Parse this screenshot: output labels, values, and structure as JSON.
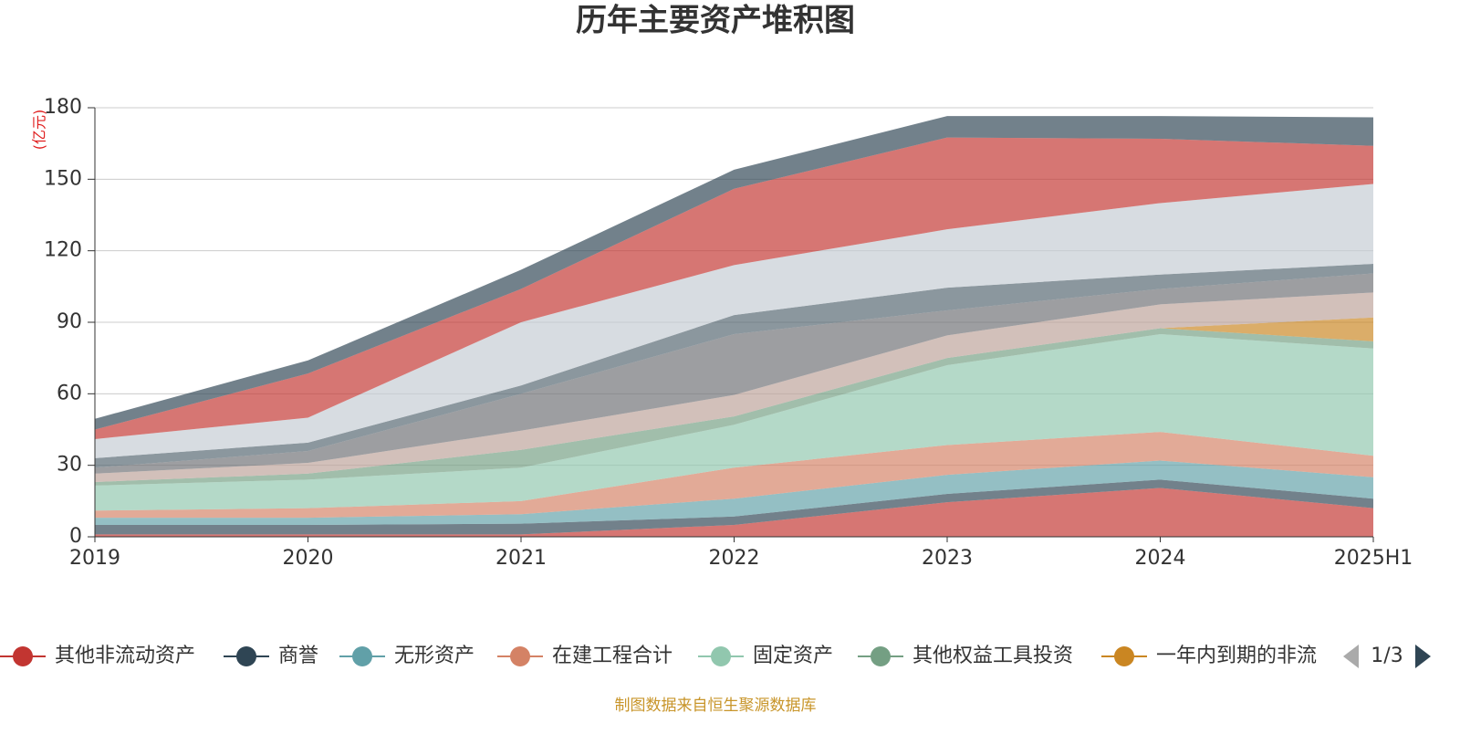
{
  "chart_data": {
    "type": "stacked_area",
    "title": "历年主要资产堆积图",
    "y_unit": "(亿元)",
    "footer": "制图数据来自恒生聚源数据库",
    "legend_pager": "1/3",
    "categories": [
      "2019",
      "2020",
      "2021",
      "2022",
      "2023",
      "2024",
      "2025H1"
    ],
    "ylim": [
      0,
      180
    ],
    "yticks": [
      0,
      30,
      60,
      90,
      120,
      150,
      180
    ],
    "grid": true,
    "series": [
      {
        "name": "其他非流动资产",
        "color": "#c23531",
        "values": [
          1,
          1,
          1,
          5,
          14.5,
          20.5,
          12
        ]
      },
      {
        "name": "商誉",
        "color": "#2f4554",
        "values": [
          4,
          4,
          4.5,
          3.5,
          3.5,
          3.5,
          4
        ]
      },
      {
        "name": "无形资产",
        "color": "#61a0a8",
        "values": [
          3,
          3,
          4,
          7.5,
          8,
          8,
          9
        ]
      },
      {
        "name": "在建工程合计",
        "color": "#d48265",
        "values": [
          3,
          4,
          5.5,
          13,
          12.5,
          12,
          9
        ]
      },
      {
        "name": "固定资产",
        "color": "#91c7ae",
        "values": [
          10.5,
          12,
          14,
          18,
          33.5,
          41,
          45
        ]
      },
      {
        "name": "其他权益工具投资",
        "color": "#749f83",
        "values": [
          1.5,
          2.5,
          7.5,
          3.5,
          3,
          2.5,
          3
        ]
      },
      {
        "name": "一年内到期的非流",
        "color": "#ca8622",
        "values": [
          0,
          0,
          0,
          0,
          0,
          0,
          10
        ]
      },
      {
        "name": null,
        "color": "#bda29a",
        "values": [
          3.5,
          4.5,
          8,
          9,
          9.5,
          10,
          10.5
        ]
      },
      {
        "name": null,
        "color": "#6e7074",
        "values": [
          2.5,
          5,
          15.5,
          25.5,
          10.5,
          6.5,
          8
        ]
      },
      {
        "name": null,
        "color": "#546570",
        "values": [
          4,
          3.5,
          3.5,
          8,
          9.5,
          6,
          4
        ]
      },
      {
        "name": null,
        "color": "#c4ccd3",
        "values": [
          8,
          10.5,
          26.5,
          21,
          24.5,
          30,
          33.5
        ]
      },
      {
        "name": null,
        "color": "#c23531",
        "values": [
          4,
          18.5,
          14,
          32,
          38.5,
          27,
          16
        ]
      },
      {
        "name": null,
        "color": "#2f4554",
        "values": [
          4.5,
          5.5,
          8,
          8,
          9,
          9.5,
          12
        ]
      }
    ]
  }
}
